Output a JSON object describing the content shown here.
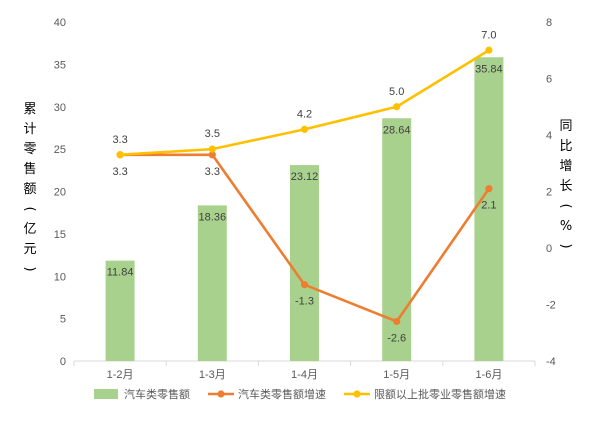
{
  "chart_data": {
    "type": "bar",
    "categories": [
      "1-2月",
      "1-3月",
      "1-4月",
      "1-5月",
      "1-6月"
    ],
    "series": [
      {
        "name": "汽车类零售额",
        "kind": "bar",
        "axis": "left",
        "values": [
          11.84,
          18.36,
          23.12,
          28.64,
          35.84
        ],
        "labels": [
          "11.84",
          "18.36",
          "23.12",
          "28.64",
          "35.84"
        ],
        "color": "#a9d18e"
      },
      {
        "name": "汽车类零售额增速",
        "kind": "line",
        "axis": "right",
        "values": [
          3.3,
          3.3,
          -1.3,
          -2.6,
          2.1
        ],
        "labels": [
          "3.3",
          "3.3",
          "-1.3",
          "-2.6",
          "2.1"
        ],
        "color": "#ed7d31"
      },
      {
        "name": "限额以上批零业零售额增速",
        "kind": "line",
        "axis": "right",
        "values": [
          3.3,
          3.5,
          4.2,
          5.0,
          7.0
        ],
        "labels": [
          "3.3",
          "3.5",
          "4.2",
          "5.0",
          "7.0"
        ],
        "color": "#ffc000"
      }
    ],
    "ylabel": "累计零售额(亿元)",
    "y2label": "同比增长(%)",
    "ylim": [
      0,
      40
    ],
    "y2lim": [
      -4,
      8
    ],
    "yticks": [
      "0",
      "5",
      "10",
      "15",
      "20",
      "25",
      "30",
      "35",
      "40"
    ],
    "y2ticks": [
      "-4",
      "-2",
      "0",
      "2",
      "4",
      "6",
      "8"
    ],
    "grid": false,
    "legend": "bottom"
  }
}
